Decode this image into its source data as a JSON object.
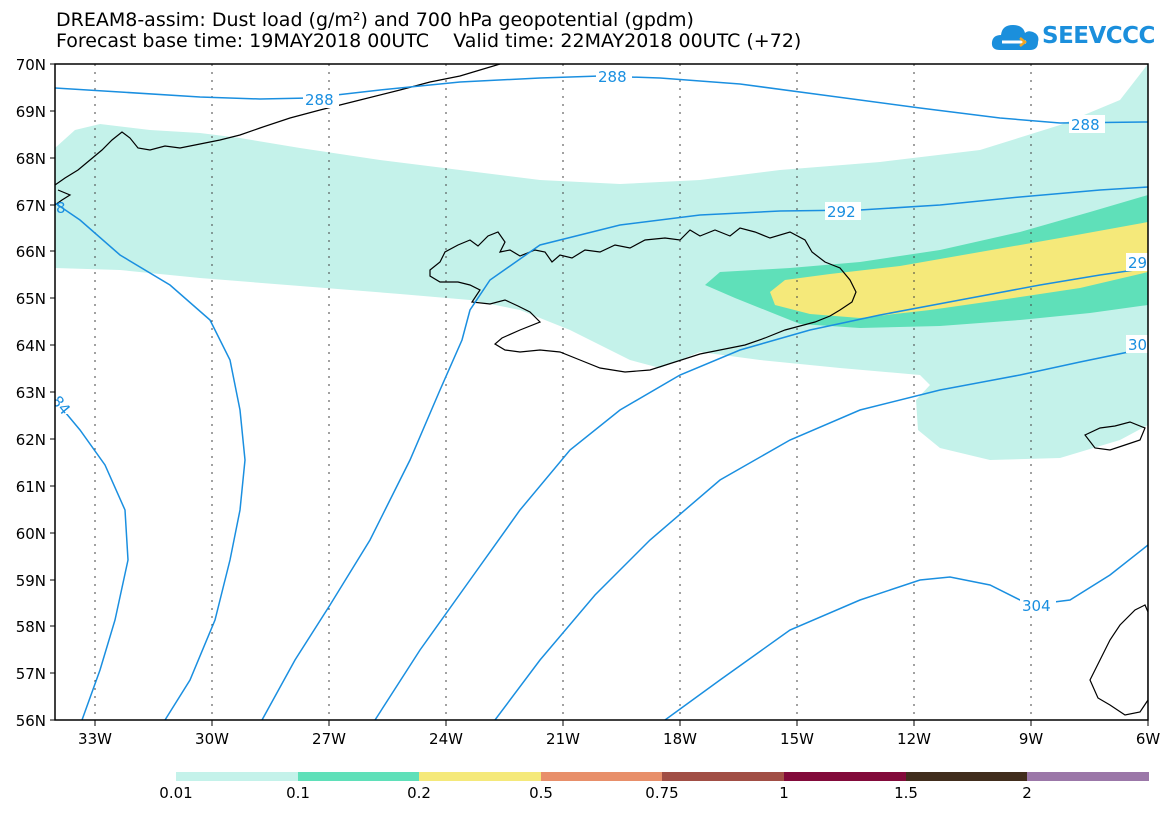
{
  "title_line1": "DREAM8-assim: Dust load (g/m²) and 700 hPa geopotential (gpdm)",
  "title_line2": "Forecast base time: 19MAY2018 00UTC    Valid time: 22MAY2018 00UTC (+72)",
  "logo_text": "SEEVCCC",
  "logo_icon": "cloud-icon",
  "lat_labels": [
    "70N",
    "69N",
    "68N",
    "67N",
    "66N",
    "65N",
    "64N",
    "63N",
    "62N",
    "61N",
    "60N",
    "59N",
    "58N",
    "57N",
    "56N"
  ],
  "lon_labels": [
    "33W",
    "30W",
    "27W",
    "24W",
    "21W",
    "18W",
    "15W",
    "12W",
    "9W",
    "6W"
  ],
  "contour_labels": [
    "288",
    "288",
    "288",
    "292",
    "29",
    "30",
    "84",
    "304",
    "8"
  ],
  "colorbar": {
    "labels": [
      "0.01",
      "0.1",
      "0.2",
      "0.5",
      "0.75",
      "1",
      "1.5",
      "2"
    ],
    "colors": [
      "#c4f2ea",
      "#5fe0b9",
      "#f5e97a",
      "#e88f6a",
      "#a14e45",
      "#820a3a",
      "#412d1d",
      "#9b77a8"
    ]
  },
  "colors": {
    "contour": "#1a8fe0",
    "coast": "#000000",
    "dust_low": "#c4f2ea",
    "dust_mid": "#5fe0b9",
    "dust_high": "#f5e97a"
  }
}
